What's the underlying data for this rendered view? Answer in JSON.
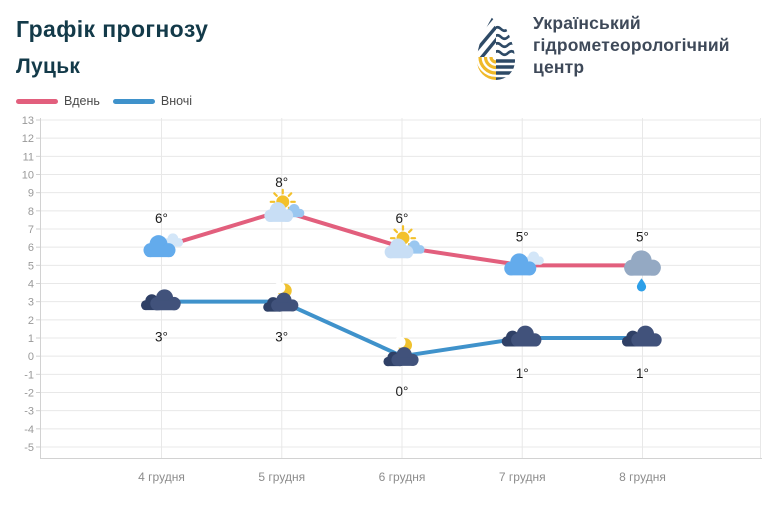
{
  "header": {
    "title": "Графік прогнозу",
    "city": "Луцьк"
  },
  "logo": {
    "line1": "Український",
    "line2": "гідрометеорологічний",
    "line3": "центр",
    "blue": "#2e4a66",
    "yellow": "#f0b929"
  },
  "chart_data": {
    "type": "line",
    "title": "Графік прогнозу — Луцьк",
    "categories": [
      "4 грудня",
      "5 грудня",
      "6 грудня",
      "7 грудня",
      "8 грудня"
    ],
    "series": [
      {
        "name": "Вдень",
        "color": "#e25f7d",
        "values": [
          6,
          8,
          6,
          5,
          5
        ],
        "icons": [
          "cloudy",
          "sun-behind-cloud",
          "sun-behind-cloud",
          "cloudy",
          "rain"
        ],
        "label_position": "above"
      },
      {
        "name": "Вночі",
        "color": "#3f92cb",
        "values": [
          3,
          3,
          0,
          1,
          1
        ],
        "icons": [
          "cloudy-night",
          "moon-behind-cloud",
          "moon-behind-cloud",
          "cloudy-night",
          "cloudy-night"
        ],
        "label_position": "below"
      }
    ],
    "temperature_unit": "°",
    "ylim": [
      -5,
      13
    ],
    "ytick_step": 1,
    "grid": true,
    "legend_position": "top-left",
    "colors": {
      "gridline": "#e8e8e8",
      "axis": "#d2d2d2",
      "y_tick_label": "#999999",
      "x_tick_label": "#8c8c8c",
      "temp_label": "#1a1a1a"
    }
  }
}
